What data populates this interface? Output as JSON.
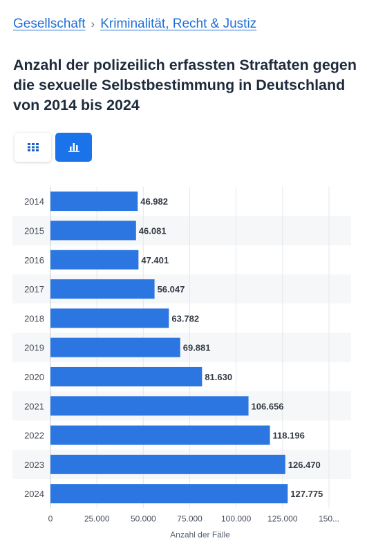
{
  "breadcrumb": {
    "items": [
      "Gesellschaft",
      "Kriminalität, Recht & Justiz"
    ],
    "separator": "›"
  },
  "title": "Anzahl der polizeilich erfassten Straftaten gegen die sexuelle Selbstbestimmung in Deutschland von 2014 bis 2024",
  "view_toggle": {
    "table_icon": "grid-icon",
    "chart_icon": "bar-chart-icon",
    "active": "chart"
  },
  "colors": {
    "accent": "#1a73e8",
    "bar": "#2b76e0",
    "link": "#1f6fd6"
  },
  "chart_data": {
    "type": "bar",
    "orientation": "horizontal",
    "categories": [
      "2014",
      "2015",
      "2016",
      "2017",
      "2018",
      "2019",
      "2020",
      "2021",
      "2022",
      "2023",
      "2024"
    ],
    "values": [
      46982,
      46081,
      47401,
      56047,
      63782,
      69881,
      81630,
      106656,
      118196,
      126470,
      127775
    ],
    "value_labels": [
      "46.982",
      "46.081",
      "47.401",
      "56.047",
      "63.782",
      "69.881",
      "81.630",
      "106.656",
      "118.196",
      "126.470",
      "127.775"
    ],
    "xlabel": "Anzahl der Fälle",
    "ylabel": "",
    "xlim": [
      0,
      150000
    ],
    "xticks": [
      0,
      25000,
      50000,
      75000,
      100000,
      125000,
      150000
    ],
    "xtick_labels": [
      "0",
      "25.000",
      "50.000",
      "75.000",
      "100.000",
      "125.000",
      "150..."
    ],
    "grid": true,
    "alternating_row_shading": true
  }
}
